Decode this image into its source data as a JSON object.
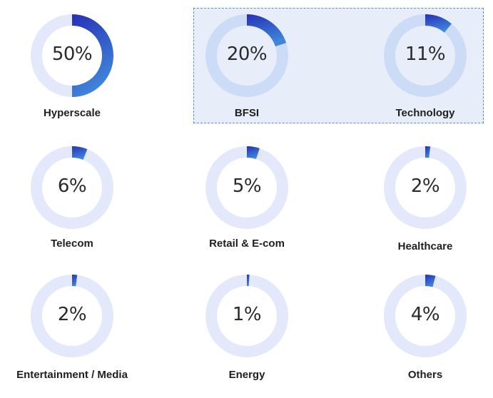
{
  "highlight_group": [
    "BFSI",
    "Technology"
  ],
  "colors": {
    "ring_default": "#e3e9fb",
    "ring_highlight": "#ccdcf6",
    "arc_start": "#2730b4",
    "arc_end": "#3f86db",
    "highlight_bg": "#e8eef9",
    "highlight_border": "#5a8dcf"
  },
  "chart_data": {
    "type": "pie",
    "categories": [
      "Hyperscale",
      "BFSI",
      "Technology",
      "Telecom",
      "Retail & E-com",
      "Healthcare",
      "Entertainment / Media",
      "Energy",
      "Others"
    ],
    "values": [
      50,
      20,
      11,
      6,
      5,
      2,
      2,
      1,
      4
    ],
    "display_labels": [
      "50%",
      "20%",
      "11%",
      "6%",
      "5%",
      "2%",
      "2%",
      "1%",
      "4%"
    ]
  }
}
